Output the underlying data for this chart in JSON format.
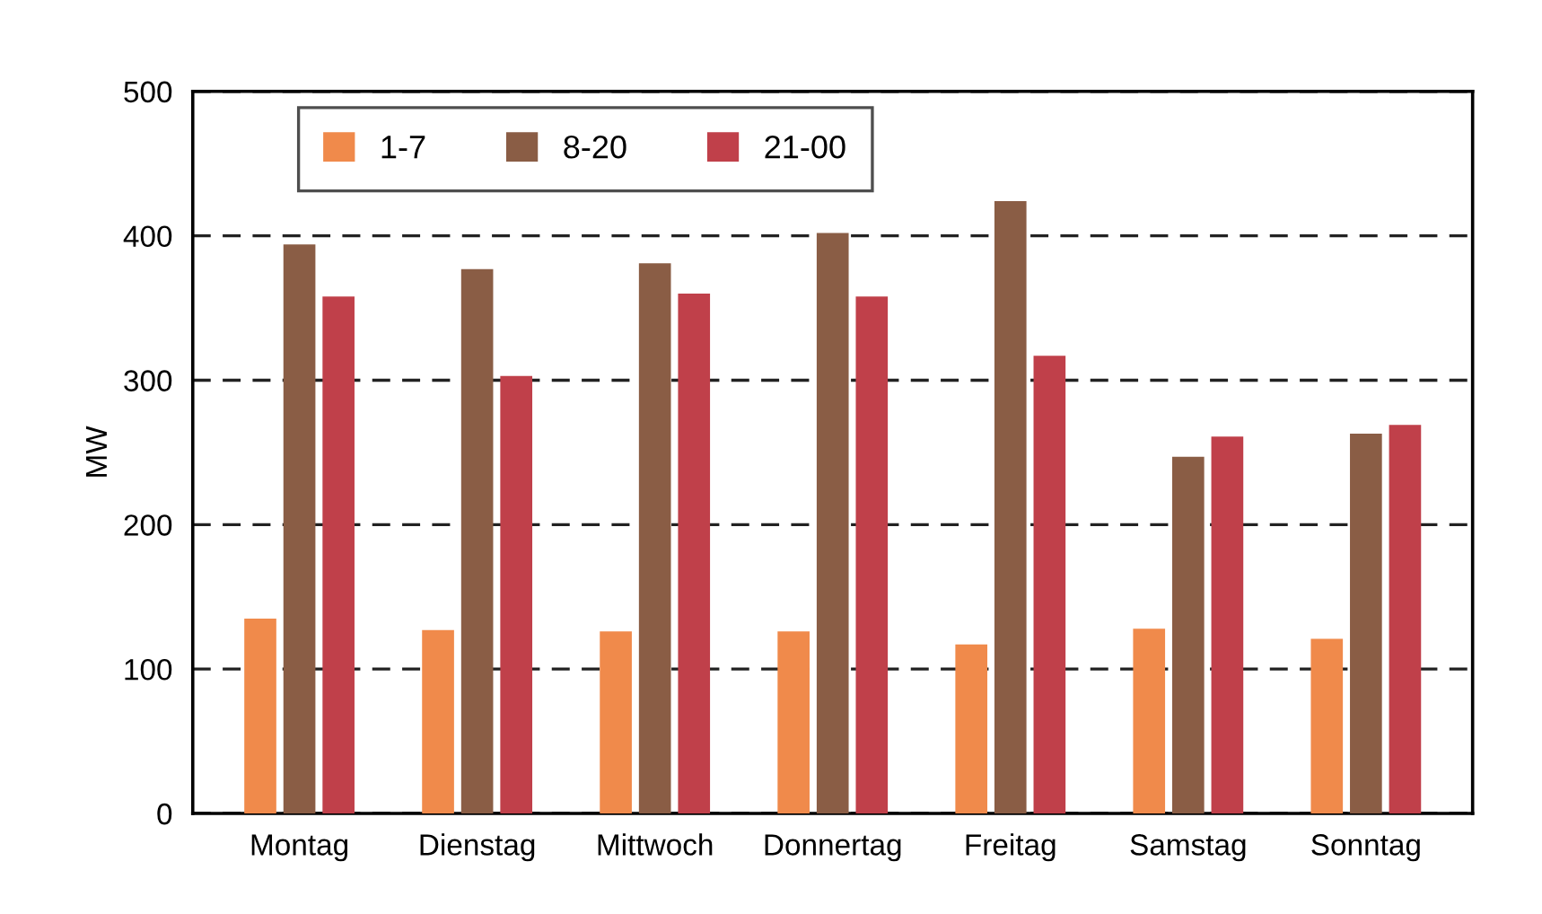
{
  "chart_data": {
    "type": "bar",
    "ylabel": "MW",
    "categories": [
      "Montag",
      "Dienstag",
      "Mittwoch",
      "Donnertag",
      "Freitag",
      "Samstag",
      "Sonntag"
    ],
    "series": [
      {
        "name": "1-7",
        "color": "#f08a4b",
        "values": [
          135,
          127,
          126,
          126,
          117,
          128,
          121
        ]
      },
      {
        "name": "8-20",
        "color": "#8a5d45",
        "values": [
          394,
          377,
          381,
          402,
          424,
          247,
          263
        ]
      },
      {
        "name": "21-00",
        "color": "#c0404a",
        "values": [
          358,
          303,
          360,
          358,
          317,
          261,
          269
        ]
      }
    ],
    "ylim": [
      0,
      500
    ],
    "yticks": [
      0,
      100,
      200,
      300,
      400,
      500
    ],
    "grid": "y",
    "legend": "top left"
  }
}
